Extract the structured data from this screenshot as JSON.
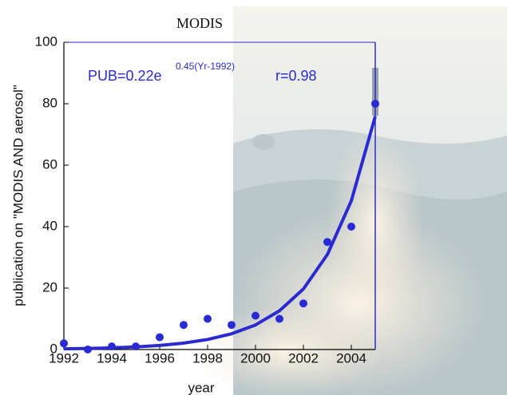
{
  "chart_data": {
    "type": "scatter",
    "title": "MODIS",
    "x_label": "year",
    "y_label": "publication on \"MODIS AND aerosol\"",
    "annotations": [
      "PUB=0.22e",
      "0.45(Yr-1992)",
      "r=0.98"
    ],
    "series": [
      {
        "mode": "markers",
        "color": "#2b2bd6",
        "x": [
          1992,
          1993,
          1994,
          1995,
          1996,
          1997,
          1998,
          1999,
          2000,
          2001,
          2002,
          2003,
          2004,
          2005
        ],
        "values": [
          2,
          0,
          1,
          1,
          4,
          8,
          10,
          8,
          11,
          10,
          15,
          35,
          40,
          80
        ]
      },
      {
        "mode": "line",
        "color": "#2a2ad0",
        "x": [
          1992,
          1993,
          1994,
          1995,
          1996,
          1997,
          1998,
          1999,
          2000,
          2001,
          2002,
          2003,
          2004,
          2005
        ],
        "values": [
          0.22,
          0.35,
          0.54,
          0.85,
          1.33,
          2.09,
          3.26,
          5.12,
          8.0,
          12.6,
          19.7,
          30.9,
          48.4,
          75.9
        ]
      }
    ],
    "xlim": [
      1992,
      2005
    ],
    "xticks": [
      1992,
      1994,
      1996,
      1998,
      2000,
      2002,
      2004
    ],
    "ylim": [
      0,
      100
    ],
    "yticks": [
      0,
      20,
      40,
      60,
      80,
      100
    ]
  }
}
